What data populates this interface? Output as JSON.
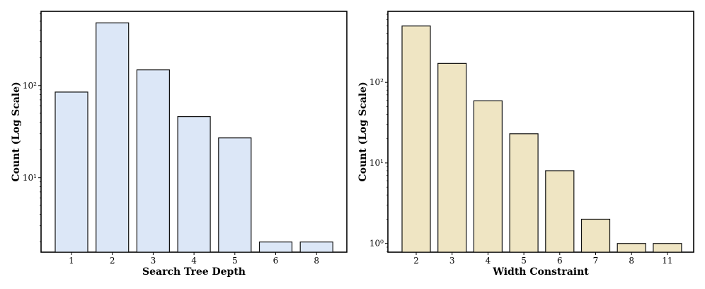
{
  "chart_data": [
    {
      "type": "bar",
      "ylog": true,
      "xlabel": "Search Tree Depth",
      "ylabel": "Count (Log Scale)",
      "categories": [
        "1",
        "2",
        "3",
        "4",
        "5",
        "6",
        "8"
      ],
      "values": [
        85,
        480,
        148,
        46,
        27,
        2,
        2
      ],
      "ytick_values": [
        10,
        100
      ],
      "ytick_labels": [
        "10¹",
        "10²"
      ],
      "bar_color": "#dce7f7",
      "ylim": [
        1.55,
        640
      ],
      "grid": false
    },
    {
      "type": "bar",
      "ylog": true,
      "xlabel": "Width Constraint",
      "ylabel": "Count (Log Scale)",
      "categories": [
        "2",
        "3",
        "4",
        "5",
        "6",
        "7",
        "8",
        "11"
      ],
      "values": [
        500,
        172,
        59,
        23,
        8,
        2,
        1,
        1
      ],
      "ytick_values": [
        1,
        10,
        100
      ],
      "ytick_labels": [
        "10⁰",
        "10¹",
        "10²"
      ],
      "bar_color": "#efe5c3",
      "ylim": [
        0.78,
        760
      ],
      "grid": false
    }
  ]
}
